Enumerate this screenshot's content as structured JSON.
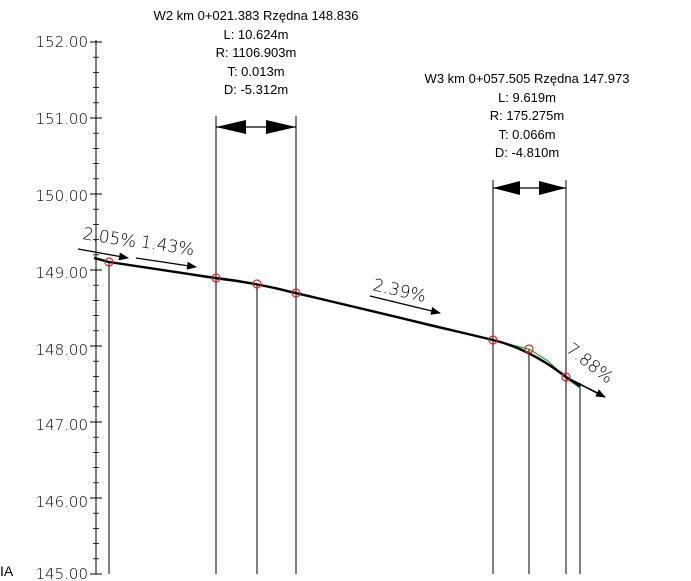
{
  "axis": {
    "y_ticks": [
      "152.00",
      "151.00",
      "150.00",
      "149.00",
      "148.00",
      "147.00",
      "146.00",
      "145.00"
    ]
  },
  "vertical_curves": [
    {
      "header": "W2 km 0+021.383 Rzędna 148.836",
      "L": "L: 10.624m",
      "R": "R: 1106.903m",
      "T": "T: 0.013m",
      "D": "D: -5.312m"
    },
    {
      "header": "W3 km 0+057.505 Rzędna 147.973",
      "L": "L: 9.619m",
      "R": "R: 175.275m",
      "T": "T: 0.066m",
      "D": "D: -4.810m"
    }
  ],
  "grades": {
    "g1": "2.05%",
    "g2": "1.43%",
    "g3": "2.39%",
    "g4": "7.88%"
  },
  "cut_text": "IA",
  "colors": {
    "profile_line": "#000000",
    "terrain_line": "#2ca02c",
    "point_marker": "#e0252a",
    "background": "#ffffff"
  }
}
